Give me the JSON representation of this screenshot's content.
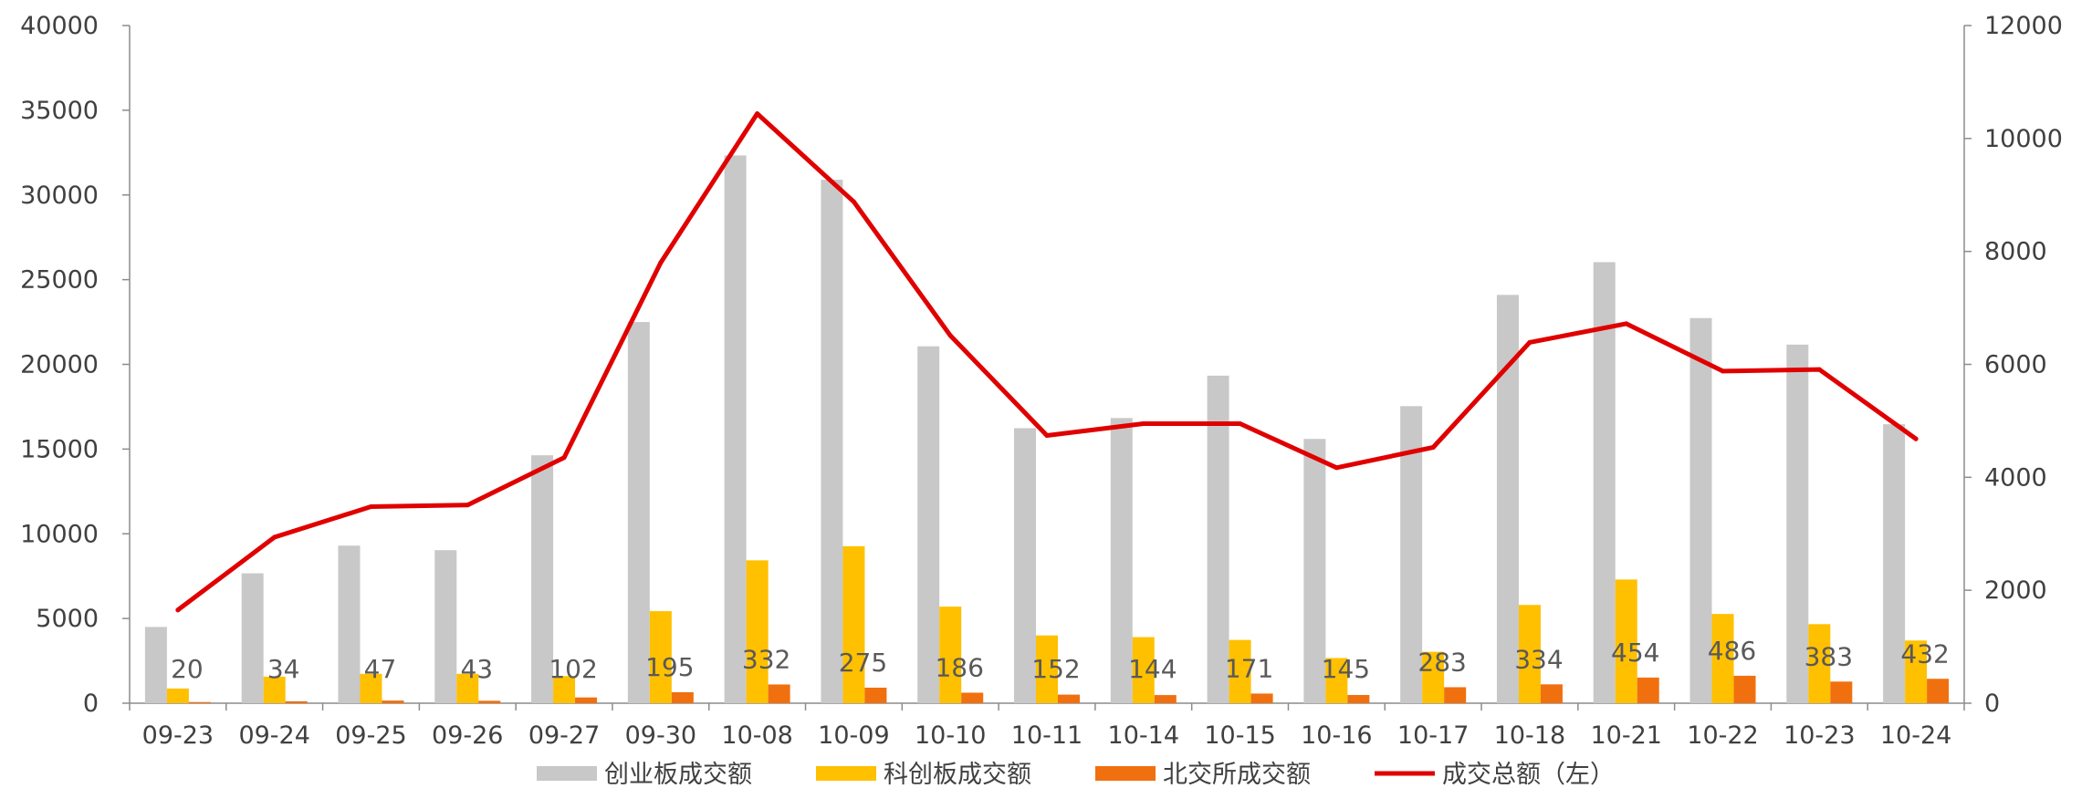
{
  "chart_data": {
    "type": "bar",
    "categories": [
      "09-23",
      "09-24",
      "09-25",
      "09-26",
      "09-27",
      "09-30",
      "10-08",
      "10-09",
      "10-10",
      "10-11",
      "10-14",
      "10-15",
      "10-16",
      "10-17",
      "10-18",
      "10-21",
      "10-22",
      "10-23",
      "10-24"
    ],
    "series": [
      {
        "name": "创业板成交额",
        "type": "bar",
        "axis": "right",
        "color": "#c8c8c8",
        "values": [
          1350,
          2300,
          2790,
          2710,
          4390,
          6750,
          9700,
          9270,
          6320,
          4870,
          5050,
          5800,
          4680,
          5260,
          7230,
          7810,
          6820,
          6350,
          4940
        ]
      },
      {
        "name": "科创板成交额",
        "type": "bar",
        "axis": "right",
        "color": "#ffc000",
        "values": [
          260,
          470,
          520,
          520,
          480,
          1630,
          2530,
          2780,
          1710,
          1200,
          1170,
          1120,
          800,
          910,
          1740,
          2190,
          1580,
          1400,
          1110
        ]
      },
      {
        "name": "北交所成交额",
        "type": "bar",
        "axis": "right",
        "color": "#f07010",
        "values": [
          20,
          34,
          47,
          43,
          102,
          195,
          332,
          275,
          186,
          152,
          144,
          171,
          145,
          283,
          334,
          454,
          486,
          383,
          432
        ],
        "labels": [
          "20",
          "34",
          "47",
          "43",
          "102",
          "195",
          "332",
          "275",
          "186",
          "152",
          "144",
          "171",
          "145",
          "283",
          "334",
          "454",
          "486",
          "383",
          "432"
        ]
      },
      {
        "name": "成交总额（左）",
        "type": "line",
        "axis": "left",
        "color": "#e00000",
        "values": [
          5500,
          9800,
          11600,
          11700,
          14500,
          26000,
          34800,
          29600,
          21700,
          15800,
          16500,
          16500,
          13900,
          15100,
          21300,
          22400,
          19600,
          19700,
          15600
        ]
      }
    ],
    "y_left": {
      "min": 0,
      "max": 40000,
      "step": 5000,
      "ticks": [
        "0",
        "5000",
        "10000",
        "15000",
        "20000",
        "25000",
        "30000",
        "35000",
        "40000"
      ]
    },
    "y_right": {
      "min": 0,
      "max": 12000,
      "step": 2000,
      "ticks": [
        "0",
        "2000",
        "4000",
        "6000",
        "8000",
        "10000",
        "12000"
      ]
    },
    "grid": false,
    "legend_position": "bottom",
    "title": ""
  }
}
